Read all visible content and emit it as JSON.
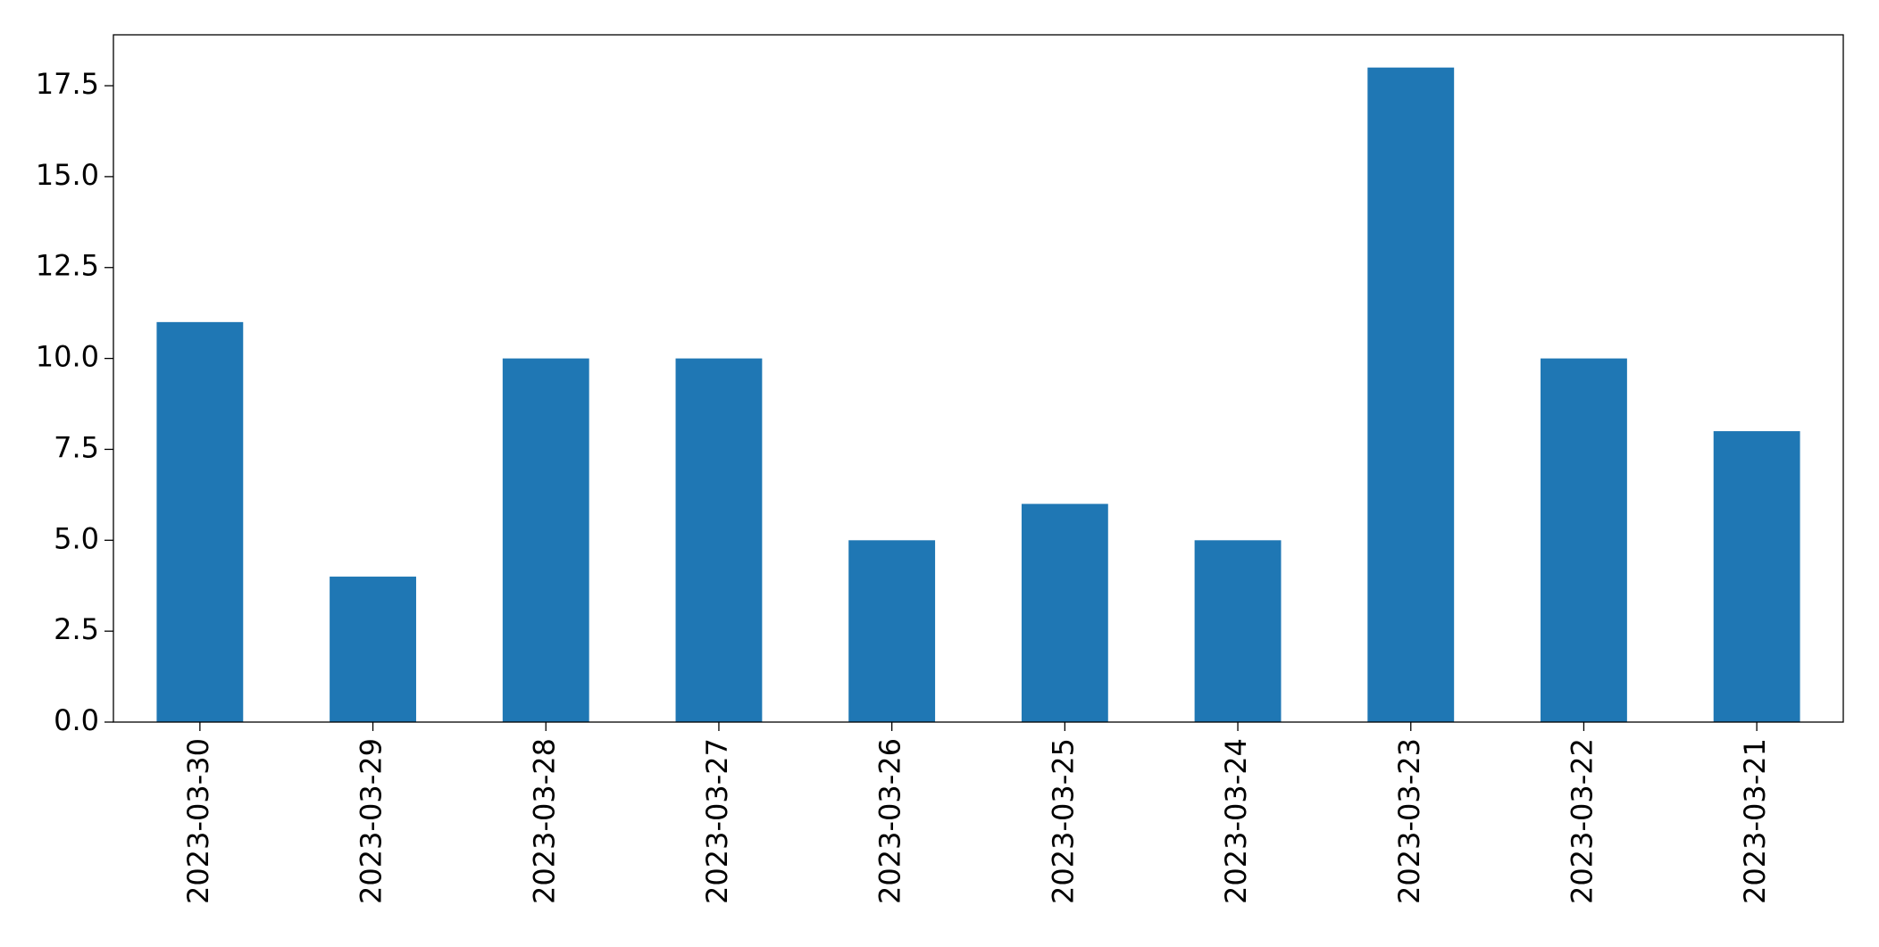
{
  "chart_data": {
    "type": "bar",
    "categories": [
      "2023-03-30",
      "2023-03-29",
      "2023-03-28",
      "2023-03-27",
      "2023-03-26",
      "2023-03-25",
      "2023-03-24",
      "2023-03-23",
      "2023-03-22",
      "2023-03-21"
    ],
    "values": [
      11,
      4,
      10,
      10,
      5,
      6,
      5,
      18,
      10,
      8
    ],
    "color": "#1f77b4",
    "ylim": [
      0,
      18.9
    ],
    "yticks": [
      {
        "value": 0,
        "label": "0.0"
      },
      {
        "value": 2.5,
        "label": "2.5"
      },
      {
        "value": 5,
        "label": "5.0"
      },
      {
        "value": 7.5,
        "label": "7.5"
      },
      {
        "value": 10,
        "label": "10.0"
      },
      {
        "value": 12.5,
        "label": "12.5"
      },
      {
        "value": 15,
        "label": "15.0"
      },
      {
        "value": 17.5,
        "label": "17.5"
      }
    ],
    "grid": false
  }
}
